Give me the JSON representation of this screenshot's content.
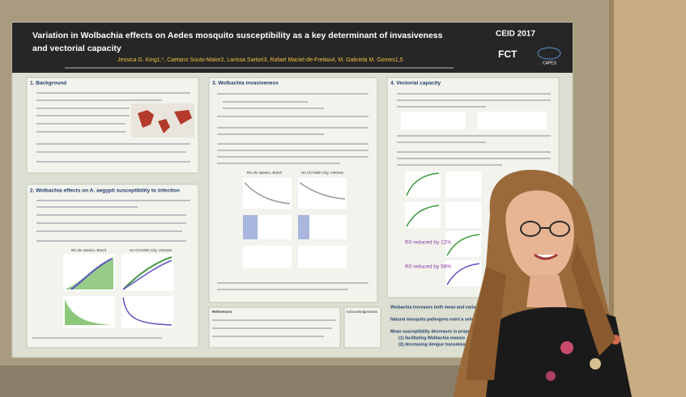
{
  "poster": {
    "title": [
      "Variation in Wolbachia effects on Aedes mosquito susceptibility as a key determinant of invasiveness",
      "and vectorial capacity"
    ],
    "authors": "Jessica G. King1,*, Caetano Souto-Maior2, Larissa Sartori3, Rafael Maciel-de-Freitas4, M. Gabriela M. Gomes1,5",
    "logos": [
      "CEID 2017",
      "FCT",
      "CAPES"
    ],
    "sections": [
      "1. Background",
      "2. Wolbachia effects on A. aegypti susceptibility to infection",
      "3. Wolbachia invasiveness",
      "4. Vectorial capacity"
    ],
    "plot_titles": [
      "Rio de Janeiro, Brazil",
      "Ho Chi Minh City, Vietnam"
    ],
    "results": [
      "R0 reduced by 12%",
      "R0 reduced by 58%"
    ],
    "conclusions": [
      "Wolbachia increases both mean and variance",
      "Natural mosquito pathogens exert a sele",
      "Mean susceptibility decreases in propo",
      "(1) facilitating Wolbachia invasio",
      "(2) decreasing dengue transmissi"
    ],
    "boxes": [
      "References",
      "Acknowledgements"
    ]
  }
}
